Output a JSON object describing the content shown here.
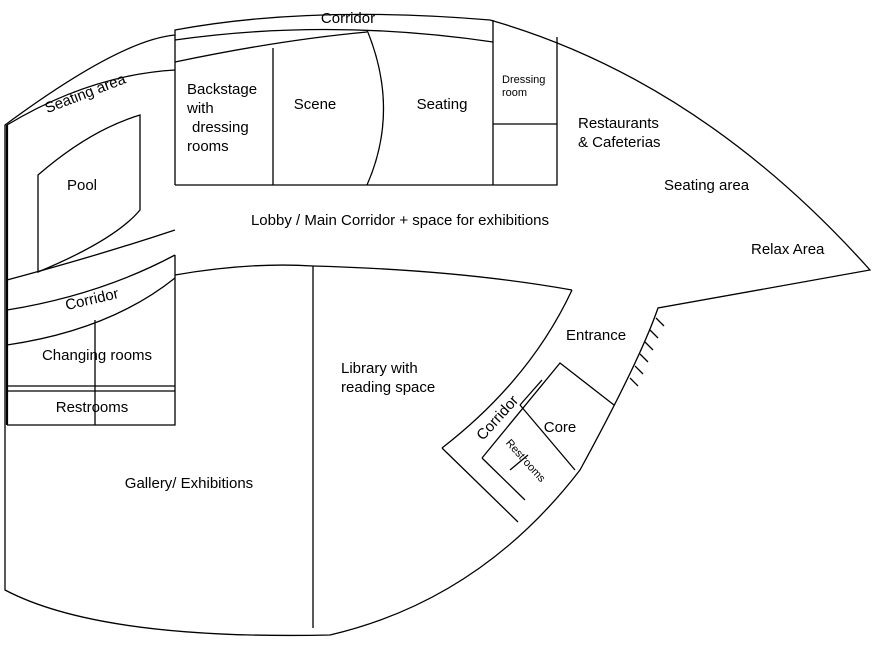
{
  "rooms": {
    "corridor_top": "Corridor",
    "seating_area_left": "Seating area",
    "pool": "Pool",
    "backstage_1": "Backstage",
    "backstage_2": "with",
    "backstage_3": "dressing",
    "backstage_4": "rooms",
    "scene": "Scene",
    "seating": "Seating",
    "dressing_room_1": "Dressing",
    "dressing_room_2": "room",
    "restaurants_1": "Restaurants",
    "restaurants_2": "& Cafeterias",
    "seating_area_right": "Seating area",
    "relax_area": "Relax Area",
    "lobby": "Lobby / Main Corridor + space for exhibitions",
    "corridor_left": "Corridor",
    "changing_rooms": "Changing rooms",
    "restrooms_left": "Restrooms",
    "gallery": "Gallery/ Exhibitions",
    "library_1": "Library with",
    "library_2": "reading space",
    "entrance": "Entrance",
    "corridor_entrance": "Corridor",
    "core": "Core",
    "restrooms_entrance": "Restrooms"
  },
  "colors": {
    "line": "#000000",
    "background": "#ffffff"
  }
}
